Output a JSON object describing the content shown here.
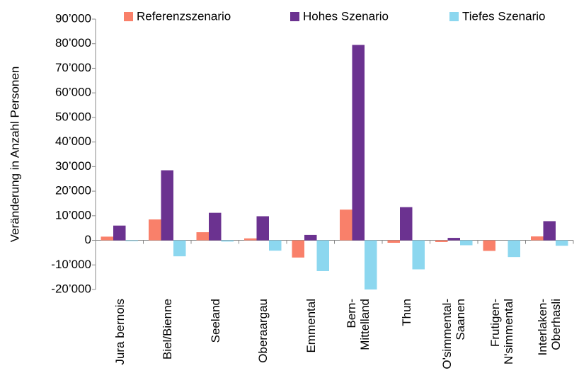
{
  "chart_data": {
    "type": "bar",
    "y_label": "Veränderung in Anzahl Personen",
    "categories": [
      "Jura bernois",
      "Biel/Bienne",
      "Seeland",
      "Oberaargau",
      "Emmental",
      "Bern-\nMittelland",
      "Thun",
      "O'simmental-\nSaanen",
      "Frutigen-\nN'simmental",
      "Interlaken-\nOberhasli"
    ],
    "series": [
      {
        "name": "Referenzszenario",
        "color": "#f9806a",
        "values": [
          1500,
          8500,
          3300,
          800,
          -7000,
          12500,
          -1000,
          -700,
          -4300,
          1600
        ]
      },
      {
        "name": "Hohes Szenario",
        "color": "#6b3290",
        "values": [
          6000,
          28500,
          11200,
          9800,
          2200,
          79500,
          13500,
          1000,
          0,
          7800
        ]
      },
      {
        "name": "Tiefes Szenario",
        "color": "#8cd7ef",
        "values": [
          -300,
          -6500,
          -500,
          -4200,
          -12500,
          -20000,
          -11800,
          -2000,
          -6800,
          -2200
        ]
      }
    ],
    "ylim": [
      -20000,
      90000
    ],
    "yticks": [
      {
        "value": -20000,
        "label": "-20’000"
      },
      {
        "value": -10000,
        "label": "-10’000"
      },
      0,
      {
        "value": 10000,
        "label": "10’000"
      },
      {
        "value": 20000,
        "label": "20’000"
      },
      {
        "value": 30000,
        "label": "30’000"
      },
      {
        "value": 40000,
        "label": "40’000"
      },
      {
        "value": 50000,
        "label": "50’000"
      },
      {
        "value": 60000,
        "label": "60’000"
      },
      {
        "value": 70000,
        "label": "70’000"
      },
      {
        "value": 80000,
        "label": "80’000"
      },
      {
        "value": 90000,
        "label": "90’000"
      }
    ],
    "grid": false,
    "legend": "top"
  }
}
